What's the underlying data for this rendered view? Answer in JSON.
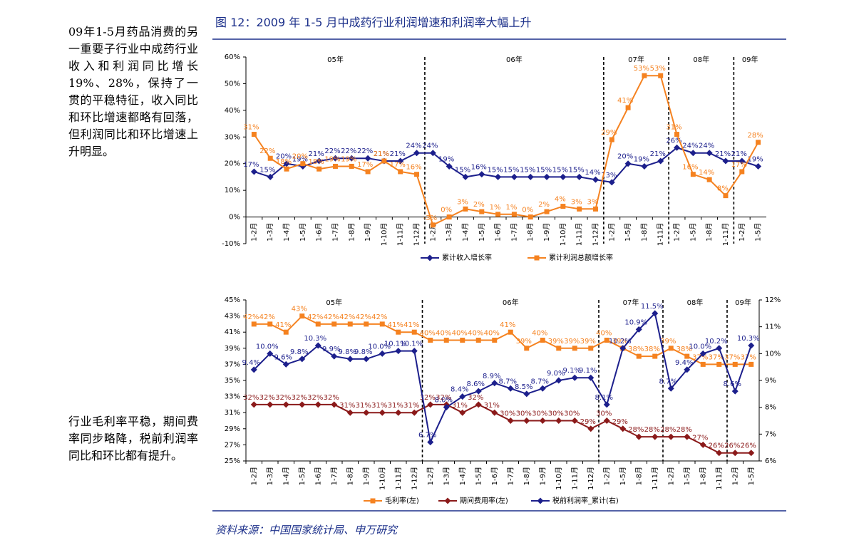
{
  "figure_title": "图 12：2009 年 1-5 月中成药行业利润增速和利润率大幅上升",
  "sidebar": {
    "text1": "09年1-5月药品消费的另一重要子行业中成药行业收入和利润同比增长 19%、28%，保持了一贯的平稳特征，收入同比和环比增速都略有回落，但利润同比和环比增速上升明显。",
    "text2": "行业毛利率平稳，期间费率同步略降，税前利润率同比和环比都有提升。"
  },
  "source": "资料来源：中国国家统计局、申万研究",
  "chart_data": [
    {
      "type": "line",
      "groups": [
        "05年",
        "06年",
        "07年",
        "08年",
        "09年"
      ],
      "categories": [
        "1-2月",
        "1-3月",
        "1-4月",
        "1-5月",
        "1-6月",
        "1-7月",
        "1-8月",
        "1-9月",
        "1-10月",
        "1-11月",
        "1-12月",
        "1-2月",
        "1-3月",
        "1-4月",
        "1-5月",
        "1-6月",
        "1-7月",
        "1-8月",
        "1-9月",
        "1-10月",
        "1-11月",
        "1-12月",
        "1-2月",
        "1-5月",
        "1-8月",
        "1-11月",
        "1-2月",
        "1-5月",
        "1-8月",
        "1-11月",
        "1-2月",
        "1-5月"
      ],
      "ylim": [
        -10,
        60
      ],
      "yticks": [
        {
          "value": -10,
          "label": "-10%"
        },
        {
          "value": 0,
          "label": "0%"
        },
        {
          "value": 10,
          "label": "10%"
        },
        {
          "value": 20,
          "label": "20%"
        },
        {
          "value": 30,
          "label": "30%"
        },
        {
          "value": 40,
          "label": "40%"
        },
        {
          "value": 50,
          "label": "50%"
        },
        {
          "value": 60,
          "label": "60%"
        }
      ],
      "series": [
        {
          "name": "累计收入增长率",
          "color": "#1c1f8c",
          "marker": "diamond",
          "values": [
            17,
            15,
            20,
            19,
            21,
            22,
            22,
            22,
            21,
            21,
            24,
            24,
            19,
            15,
            16,
            15,
            15,
            15,
            15,
            15,
            15,
            14,
            13,
            20,
            19,
            21,
            26,
            24,
            24,
            21,
            21,
            19
          ],
          "value_labels": [
            "17%",
            "15%",
            "20%",
            "19%",
            "21%",
            "22%",
            "22%",
            "22%",
            "21%",
            "21%",
            "24%",
            "24%",
            "19%",
            "15%",
            "16%",
            "15%",
            "15%",
            "15%",
            "15%",
            "15%",
            "15%",
            "14%",
            "13%",
            "20%",
            "19%",
            "21%",
            "26%",
            "24%",
            "24%",
            "21%",
            "21%",
            "19%"
          ]
        },
        {
          "name": "累计利润总额增长率",
          "color": "#f58220",
          "marker": "square",
          "values": [
            31,
            22,
            18,
            20,
            18,
            19,
            19,
            17,
            21,
            17,
            16,
            -3,
            0,
            3,
            2,
            1,
            1,
            0,
            2,
            4,
            3,
            3,
            29,
            41,
            53,
            53,
            31,
            16,
            14,
            8,
            17,
            28
          ],
          "value_labels": [
            "31%",
            "22%",
            "18%",
            "20%",
            "18%",
            "19%",
            "19%",
            "17%",
            "21%",
            "17%",
            "16%",
            "-3%",
            "0%",
            "3%",
            "2%",
            "1%",
            "1%",
            "0%",
            "2%",
            "4%",
            "3%",
            "3%",
            "29%",
            "41%",
            "53%",
            "53%",
            "31%",
            "16%",
            "14%",
            "8%",
            "17%",
            "28%"
          ]
        }
      ]
    },
    {
      "type": "line",
      "groups": [
        "05年",
        "06年",
        "07年",
        "08年",
        "09年"
      ],
      "categories": [
        "1-2月",
        "1-3月",
        "1-4月",
        "1-5月",
        "1-6月",
        "1-7月",
        "1-8月",
        "1-9月",
        "1-10月",
        "1-11月",
        "1-12月",
        "1-2月",
        "1-3月",
        "1-4月",
        "1-5月",
        "1-6月",
        "1-7月",
        "1-8月",
        "1-9月",
        "1-10月",
        "1-11月",
        "1-12月",
        "1-2月",
        "1-5月",
        "1-8月",
        "1-11月",
        "1-2月",
        "1-5月",
        "1-8月",
        "1-11月",
        "1-2月",
        "1-5月"
      ],
      "ylim": [
        25,
        45
      ],
      "yticks": [
        {
          "value": 25,
          "label": "25%"
        },
        {
          "value": 27,
          "label": "27%"
        },
        {
          "value": 29,
          "label": "29%"
        },
        {
          "value": 31,
          "label": "31%"
        },
        {
          "value": 33,
          "label": "33%"
        },
        {
          "value": 35,
          "label": "35%"
        },
        {
          "value": 37,
          "label": "37%"
        },
        {
          "value": 39,
          "label": "39%"
        },
        {
          "value": 41,
          "label": "41%"
        },
        {
          "value": 43,
          "label": "43%"
        },
        {
          "value": 45,
          "label": "45%"
        }
      ],
      "y2lim": [
        6,
        12
      ],
      "y2ticks": [
        {
          "value": 6,
          "label": "6%"
        },
        {
          "value": 7,
          "label": "7%"
        },
        {
          "value": 8,
          "label": "8%"
        },
        {
          "value": 9,
          "label": "9%"
        },
        {
          "value": 10,
          "label": "10%"
        },
        {
          "value": 11,
          "label": "11%"
        },
        {
          "value": 12,
          "label": "12%"
        }
      ],
      "series": [
        {
          "name": "毛利率(左)",
          "color": "#f58220",
          "marker": "square",
          "values": [
            42,
            42,
            41,
            43,
            42,
            42,
            42,
            42,
            42,
            41,
            41,
            40,
            40,
            40,
            40,
            40,
            41,
            39,
            40,
            39,
            39,
            39,
            40,
            39,
            38,
            38,
            39,
            38,
            37,
            37,
            37,
            37
          ],
          "value_labels": [
            "42%",
            "42%",
            "41%",
            "43%",
            "42%",
            "42%",
            "42%",
            "42%",
            "42%",
            "41%",
            "41%",
            "40%",
            "40%",
            "40%",
            "40%",
            "40%",
            "41%",
            "39%",
            "40%",
            "39%",
            "39%",
            "39%",
            "40%",
            "39%",
            "38%",
            "38%",
            "39%",
            "38%",
            "37%",
            "37%",
            "37%",
            "37%"
          ]
        },
        {
          "name": "期间费用率(左)",
          "color": "#8b1a1a",
          "marker": "diamond",
          "values": [
            32,
            32,
            32,
            32,
            32,
            32,
            31,
            31,
            31,
            31,
            31,
            32,
            32,
            31,
            32,
            31,
            30,
            30,
            30,
            30,
            30,
            29,
            30,
            29,
            28,
            28,
            28,
            28,
            27,
            26,
            26,
            26
          ],
          "value_labels": [
            "32%",
            "32%",
            "32%",
            "32%",
            "32%",
            "32%",
            "31%",
            "31%",
            "31%",
            "31%",
            "31%",
            "32%",
            "32%",
            "31%",
            "32%",
            "31%",
            "30%",
            "30%",
            "30%",
            "30%",
            "30%",
            "29%",
            "30%",
            "29%",
            "28%",
            "28%",
            "28%",
            "28%",
            "27%",
            "26%",
            "26%",
            "26%"
          ]
        },
        {
          "name": "税前利润率_累计(右)",
          "color": "#1c1f8c",
          "marker": "diamond",
          "axis": "y2",
          "values": [
            9.4,
            10.0,
            9.6,
            9.8,
            10.3,
            9.9,
            9.8,
            9.8,
            10.0,
            10.1,
            10.1,
            6.7,
            8.0,
            8.4,
            8.6,
            8.9,
            8.7,
            8.5,
            8.7,
            9.0,
            9.1,
            9.1,
            8.1,
            10.2,
            10.9,
            11.5,
            8.7,
            9.4,
            10.0,
            10.2,
            8.6,
            10.3
          ],
          "value_labels": [
            "9.4%",
            "10.0%",
            "9.6%",
            "9.8%",
            "10.3%",
            "9.9%",
            "9.8%",
            "9.8%",
            "10.0%",
            "10.1%",
            "10.1%",
            "6.7%",
            "8.0%",
            "8.4%",
            "8.6%",
            "8.9%",
            "8.7%",
            "8.5%",
            "8.7%",
            "9.0%",
            "9.1%",
            "9.1%",
            "8.1%",
            "10.2%",
            "10.9%",
            "11.5%",
            "8.7%",
            "9.4%",
            "10.0%",
            "10.2%",
            "8.6%",
            "10.3%"
          ]
        }
      ]
    }
  ]
}
